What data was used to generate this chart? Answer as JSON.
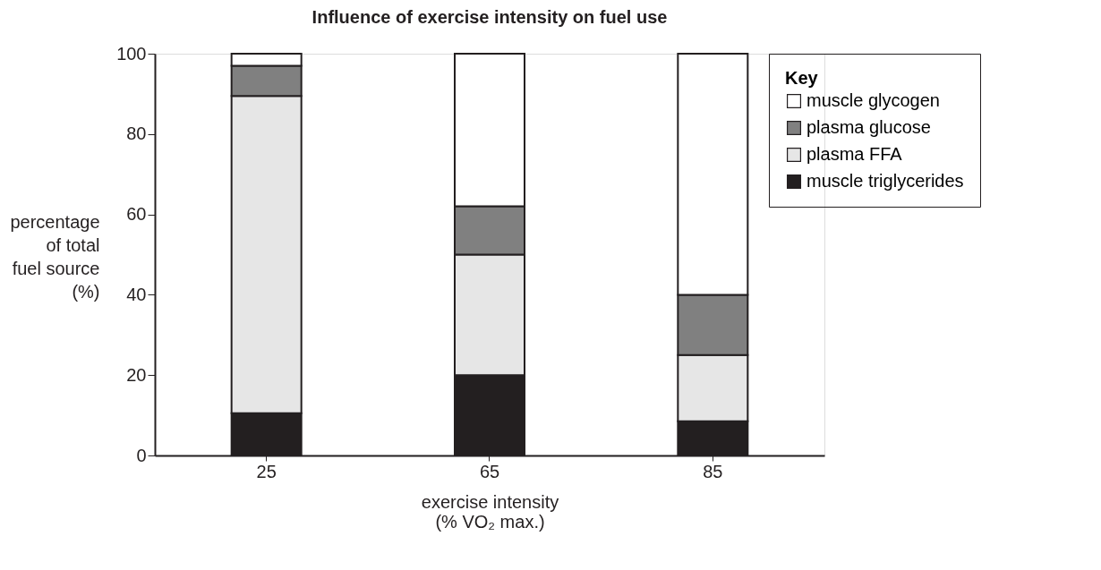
{
  "chart_data": {
    "type": "bar",
    "stacked": true,
    "title": "Influence of exercise intensity on fuel use",
    "xlabel": "exercise intensity\n(% VO₂ max.)",
    "ylabel": "percentage\nof total\nfuel source\n(%)",
    "legend_title": "Key",
    "categories": [
      "25",
      "65",
      "85"
    ],
    "series": [
      {
        "name": "muscle triglycerides",
        "color": "#231f20",
        "values": [
          10.5,
          20,
          8.5
        ]
      },
      {
        "name": "plasma FFA",
        "color": "#e6e6e6",
        "values": [
          79,
          30,
          16.5
        ]
      },
      {
        "name": "plasma glucose",
        "color": "#808080",
        "values": [
          7.5,
          12,
          15
        ]
      },
      {
        "name": "muscle glycogen",
        "color": "#ffffff",
        "values": [
          3,
          38,
          60
        ]
      }
    ],
    "ylim": [
      0,
      100
    ],
    "yticks": [
      0,
      20,
      40,
      60,
      80,
      100
    ],
    "grid": false,
    "legend": "top right"
  }
}
